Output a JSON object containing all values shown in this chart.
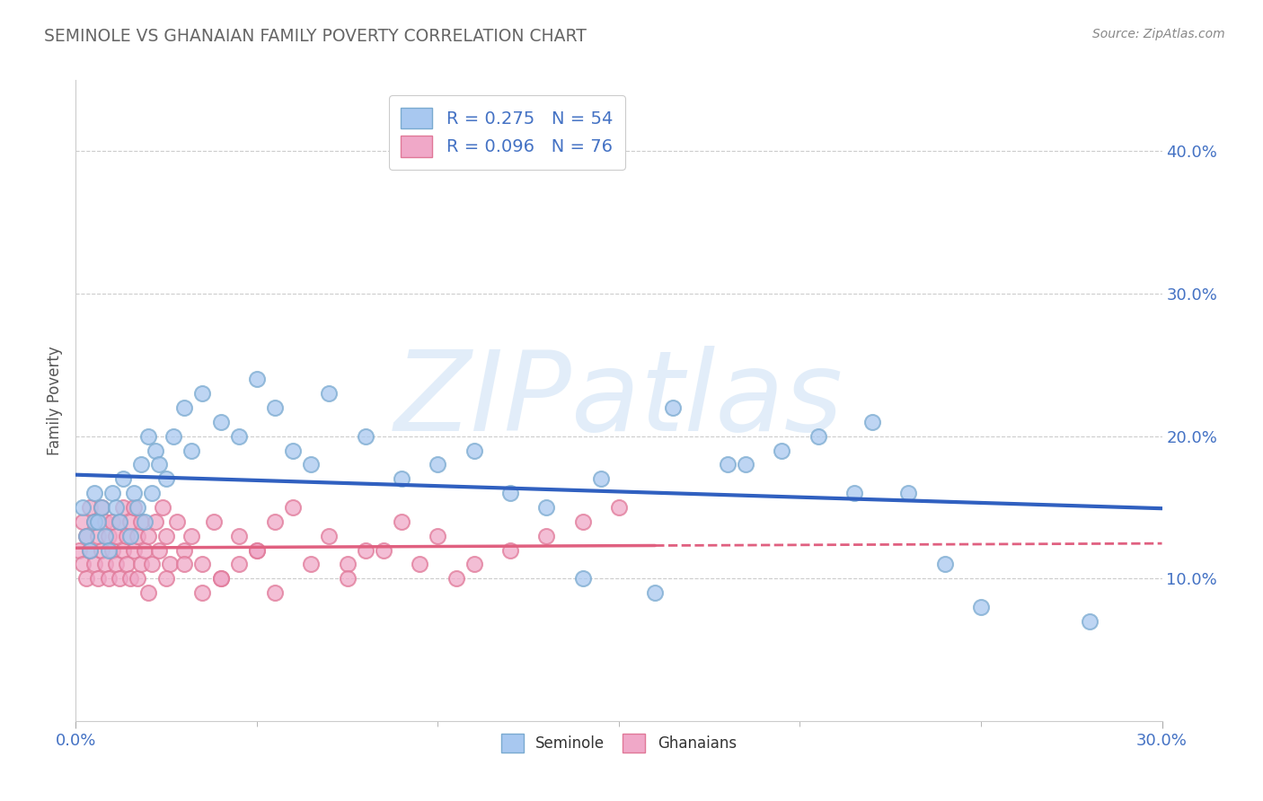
{
  "title": "SEMINOLE VS GHANAIAN FAMILY POVERTY CORRELATION CHART",
  "source_text": "Source: ZipAtlas.com",
  "ylabel": "Family Poverty",
  "seminole_R": 0.275,
  "seminole_N": 54,
  "ghanaian_R": 0.096,
  "ghanaian_N": 76,
  "seminole_color": "#a8c8f0",
  "ghanaian_color": "#f0a8c8",
  "seminole_edge": "#7aaad0",
  "ghanaian_edge": "#e07898",
  "trend_blue": "#3060c0",
  "trend_pink": "#e06080",
  "watermark": "ZIPatlas",
  "xlim": [
    0,
    30
  ],
  "ylim": [
    0,
    45
  ],
  "y_ticks_right": [
    10,
    20,
    30,
    40
  ],
  "grid_color": "#cccccc",
  "bg_color": "#ffffff",
  "title_color": "#666666",
  "axis_label_color": "#4472c4",
  "legend_label_color": "#4472c4",
  "seminole_x": [
    0.2,
    0.3,
    0.4,
    0.5,
    0.5,
    0.6,
    0.7,
    0.8,
    0.9,
    1.0,
    1.1,
    1.2,
    1.3,
    1.5,
    1.6,
    1.7,
    1.8,
    1.9,
    2.0,
    2.1,
    2.2,
    2.3,
    2.5,
    2.7,
    3.0,
    3.2,
    3.5,
    4.0,
    4.5,
    5.0,
    5.5,
    6.0,
    6.5,
    7.0,
    8.0,
    9.0,
    10.0,
    11.0,
    12.0,
    13.0,
    14.5,
    16.5,
    18.5,
    19.5,
    20.5,
    21.5,
    22.0,
    23.0,
    24.0,
    25.0,
    28.0,
    14.0,
    16.0,
    18.0
  ],
  "seminole_y": [
    15,
    13,
    12,
    14,
    16,
    14,
    15,
    13,
    12,
    16,
    15,
    14,
    17,
    13,
    16,
    15,
    18,
    14,
    20,
    16,
    19,
    18,
    17,
    20,
    22,
    19,
    23,
    21,
    20,
    24,
    22,
    19,
    18,
    23,
    20,
    17,
    18,
    19,
    16,
    15,
    17,
    22,
    18,
    19,
    20,
    16,
    21,
    16,
    11,
    8,
    7,
    10,
    9,
    18
  ],
  "ghanaian_x": [
    0.1,
    0.2,
    0.2,
    0.3,
    0.3,
    0.4,
    0.4,
    0.5,
    0.5,
    0.6,
    0.6,
    0.7,
    0.7,
    0.8,
    0.8,
    0.9,
    0.9,
    1.0,
    1.0,
    1.1,
    1.1,
    1.2,
    1.2,
    1.3,
    1.3,
    1.4,
    1.4,
    1.5,
    1.5,
    1.6,
    1.6,
    1.7,
    1.7,
    1.8,
    1.8,
    1.9,
    2.0,
    2.1,
    2.2,
    2.3,
    2.4,
    2.5,
    2.6,
    2.8,
    3.0,
    3.2,
    3.5,
    3.8,
    4.0,
    4.5,
    5.0,
    5.5,
    6.0,
    7.0,
    7.5,
    8.0,
    9.0,
    10.0,
    11.0,
    12.0,
    13.0,
    14.0,
    15.0,
    2.0,
    2.5,
    3.0,
    3.5,
    4.0,
    4.5,
    5.0,
    5.5,
    6.5,
    7.5,
    8.5,
    9.5,
    10.5
  ],
  "ghanaian_y": [
    12,
    11,
    14,
    10,
    13,
    12,
    15,
    11,
    14,
    10,
    13,
    12,
    15,
    11,
    14,
    10,
    13,
    12,
    14,
    11,
    13,
    10,
    14,
    12,
    15,
    11,
    13,
    10,
    14,
    12,
    15,
    10,
    13,
    11,
    14,
    12,
    13,
    11,
    14,
    12,
    15,
    13,
    11,
    14,
    12,
    13,
    11,
    14,
    10,
    13,
    12,
    14,
    15,
    13,
    11,
    12,
    14,
    13,
    11,
    12,
    13,
    14,
    15,
    9,
    10,
    11,
    9,
    10,
    11,
    12,
    9,
    11,
    10,
    12,
    11,
    10
  ],
  "ghanaian_x_solid_max": 16.0
}
